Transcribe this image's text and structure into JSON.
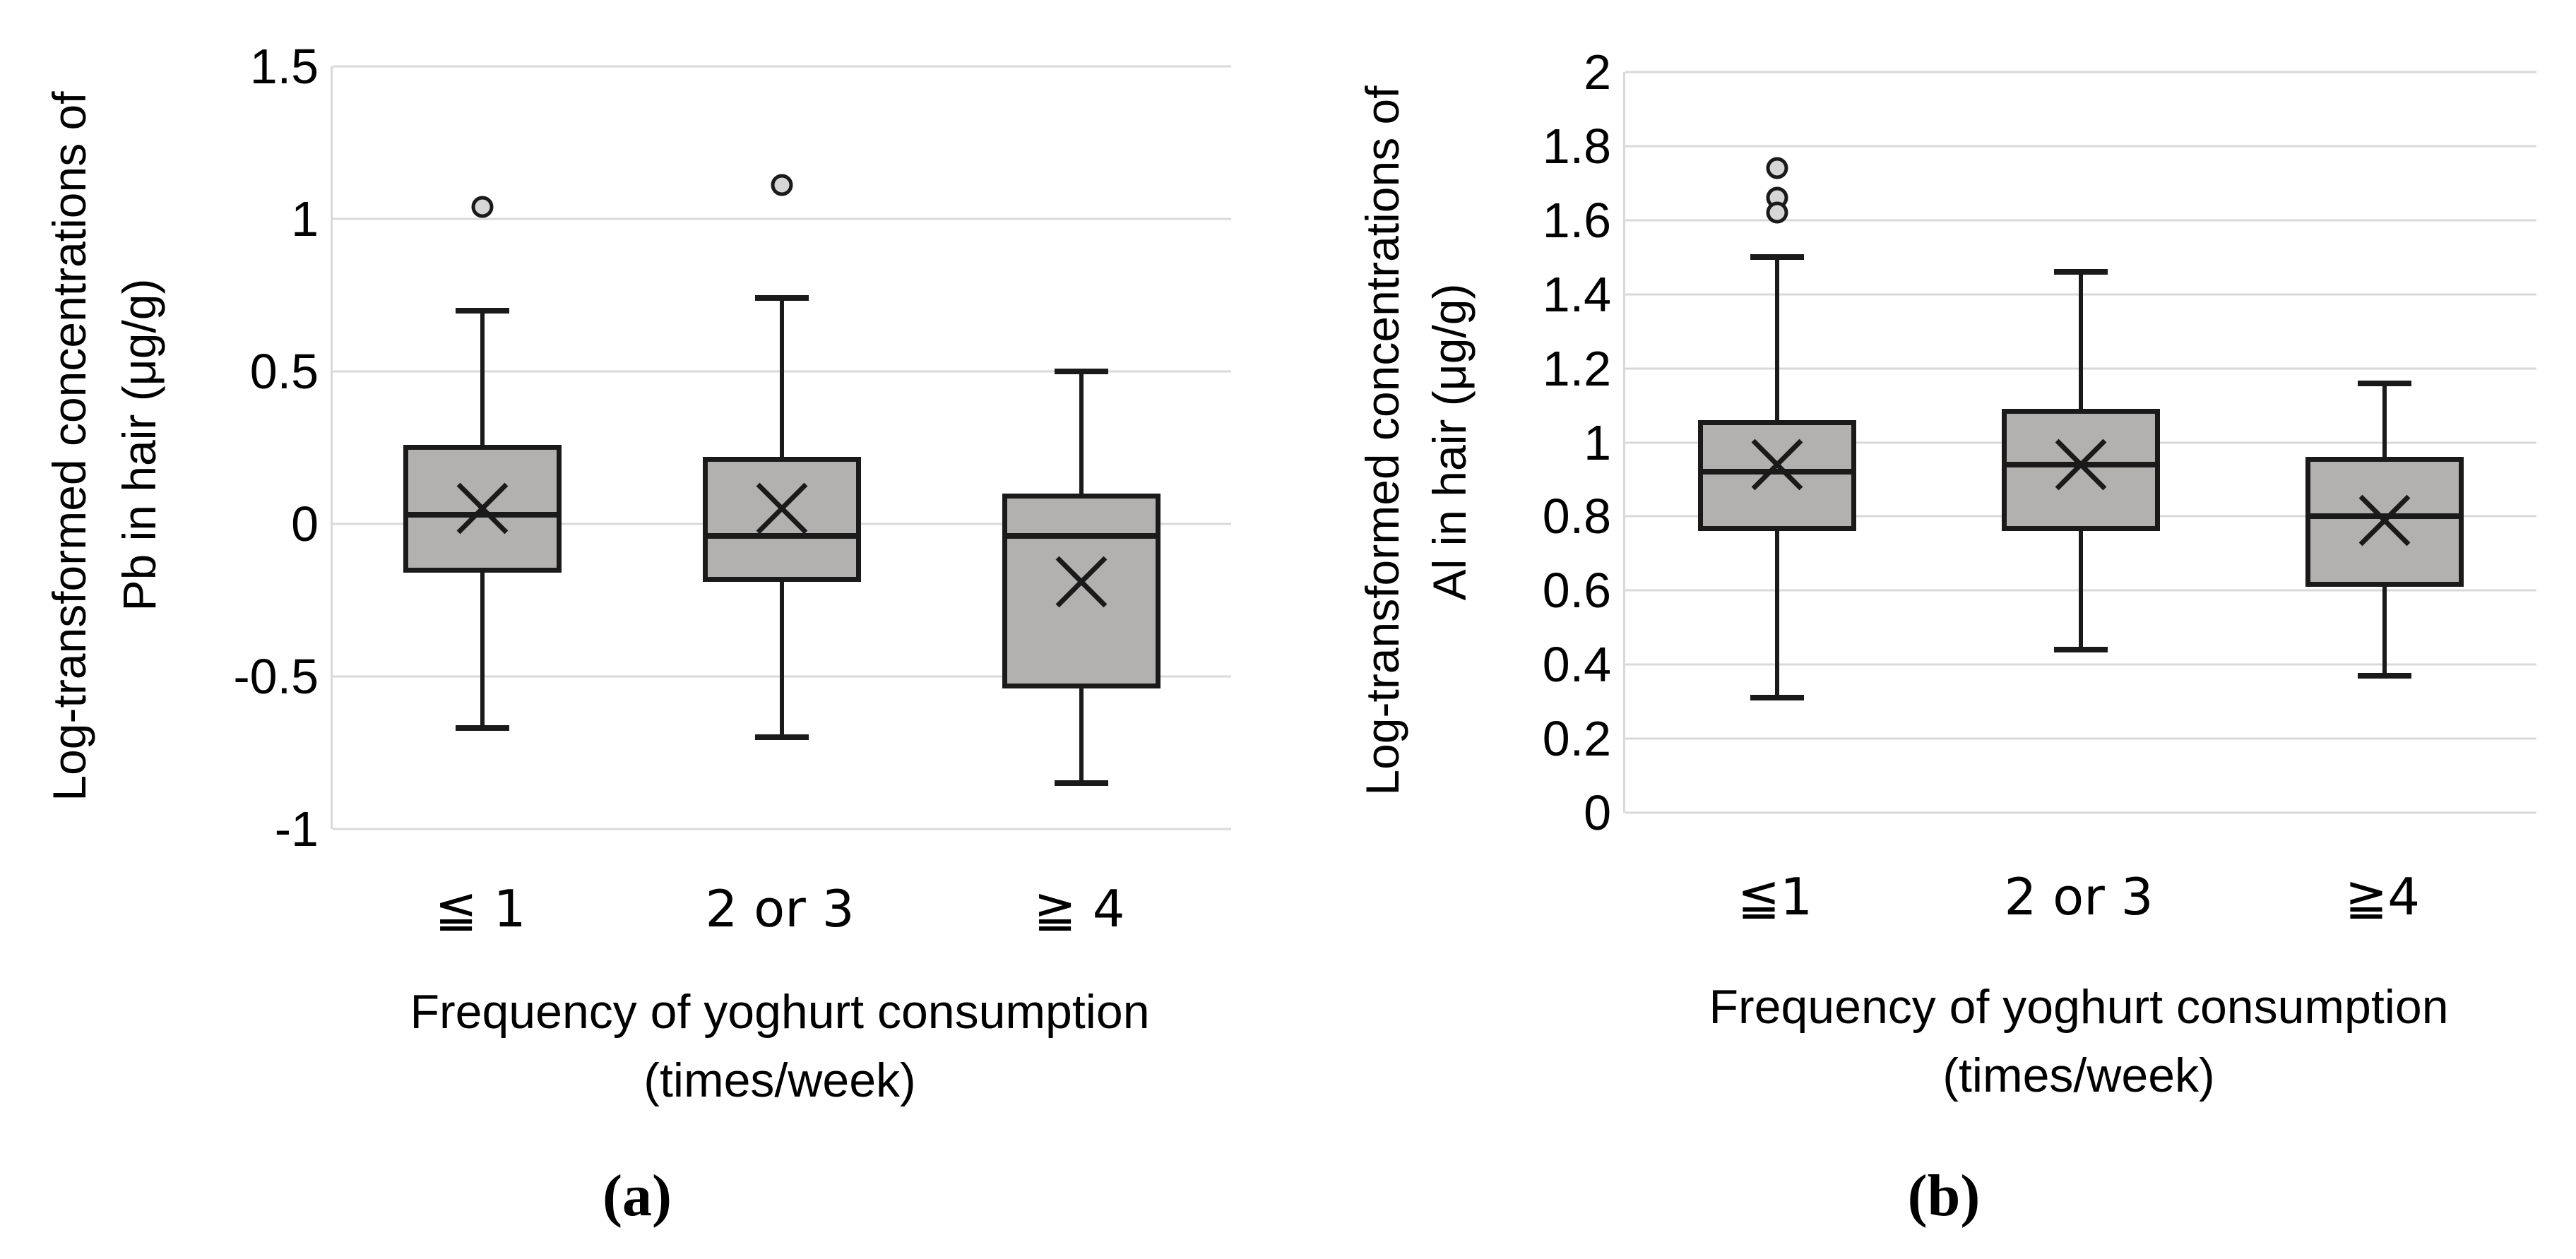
{
  "styles": {
    "background": "#ffffff",
    "stroke": "#1a1a1a",
    "gridline": "#d9d9d9",
    "box_fill": "#b3b0b0",
    "outlier_fill": "#d6d6d6",
    "text": "#000000"
  },
  "chart_data": [
    {
      "type": "boxplot",
      "caption": "(a)",
      "ylabel_line1": "Log-transformed concentrations of",
      "ylabel_line2": "Pb in hair (μg/g)",
      "xlabel_line1": "Frequency of yoghurt consumption",
      "xlabel_line2": "(times/week)",
      "ylim": [
        -1,
        1.5
      ],
      "yticks": [
        1.5,
        1,
        0.5,
        0,
        -0.5,
        -1
      ],
      "ytick_labels": [
        "1.5",
        "1",
        "0.5",
        "0",
        "-0.5",
        "-1"
      ],
      "grid": true,
      "legend": false,
      "categories": [
        "≦ 1",
        "2 or 3",
        "≧ 4"
      ],
      "series": [
        {
          "category": "≦ 1",
          "min": -0.67,
          "q1": -0.16,
          "median": 0.03,
          "q3": 0.26,
          "max": 0.7,
          "mean": 0.05,
          "outliers": [
            1.04
          ]
        },
        {
          "category": "2 or 3",
          "min": -0.7,
          "q1": -0.19,
          "median": -0.04,
          "q3": 0.22,
          "max": 0.74,
          "mean": 0.05,
          "outliers": [
            1.11
          ]
        },
        {
          "category": "≧ 4",
          "min": -0.85,
          "q1": -0.54,
          "median": -0.04,
          "q3": 0.1,
          "max": 0.5,
          "mean": -0.19,
          "outliers": []
        }
      ]
    },
    {
      "type": "boxplot",
      "caption": "(b)",
      "ylabel_line1": "Log-transformed concentrations of",
      "ylabel_line2": "Al in hair (μg/g)",
      "xlabel_line1": "Frequency of yoghurt consumption",
      "xlabel_line2": "(times/week)",
      "ylim": [
        0,
        2
      ],
      "yticks": [
        2,
        1.8,
        1.6,
        1.4,
        1.2,
        1,
        0.8,
        0.6,
        0.4,
        0.2,
        0
      ],
      "ytick_labels": [
        "2",
        "1.8",
        "1.6",
        "1.4",
        "1.2",
        "1",
        "0.8",
        "0.6",
        "0.4",
        "0.2",
        "0"
      ],
      "grid": true,
      "legend": false,
      "categories": [
        "≦1",
        "2 or 3",
        "≧4"
      ],
      "series": [
        {
          "category": "≦1",
          "min": 0.31,
          "q1": 0.76,
          "median": 0.92,
          "q3": 1.06,
          "max": 1.5,
          "mean": 0.94,
          "outliers": [
            1.74,
            1.66,
            1.62
          ]
        },
        {
          "category": "2 or 3",
          "min": 0.44,
          "q1": 0.76,
          "median": 0.94,
          "q3": 1.09,
          "max": 1.46,
          "mean": 0.94,
          "outliers": []
        },
        {
          "category": "≧4",
          "min": 0.37,
          "q1": 0.61,
          "median": 0.8,
          "q3": 0.96,
          "max": 1.16,
          "mean": 0.79,
          "outliers": []
        }
      ]
    }
  ]
}
